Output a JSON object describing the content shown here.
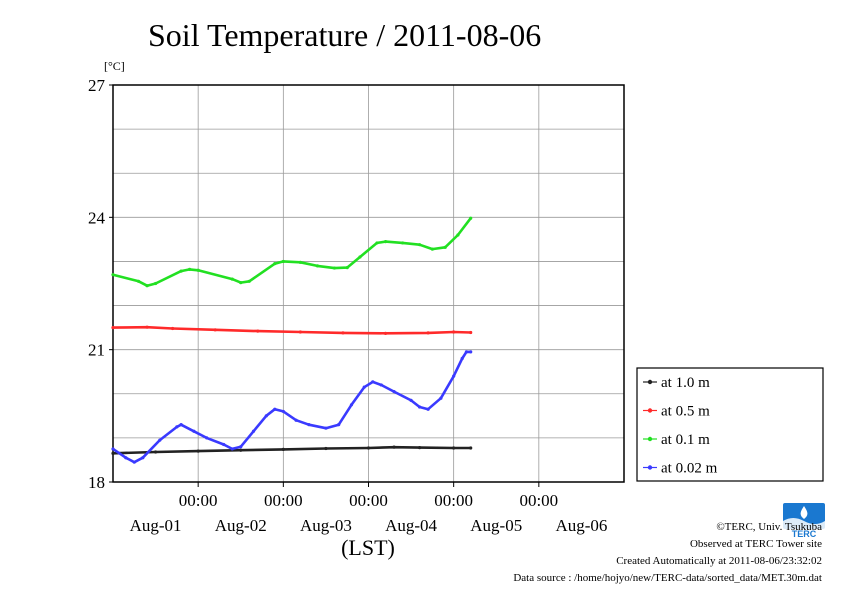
{
  "chart_data": {
    "type": "line",
    "title": "Soil Temperature / 2011-08-06",
    "yunit": "[°C]",
    "xlabel": "(LST)",
    "ylim": [
      18,
      27
    ],
    "xlim": [
      0,
      6
    ],
    "y_ticks": [
      "18",
      "21",
      "24",
      "27"
    ],
    "y_tick_values": [
      18,
      21,
      24,
      27
    ],
    "time_tick_label": "00:00",
    "x_tick_positions": [
      1,
      2,
      3,
      4,
      5
    ],
    "date_labels": [
      "Aug-01",
      "Aug-02",
      "Aug-03",
      "Aug-04",
      "Aug-05",
      "Aug-06"
    ],
    "grid": true,
    "legend_position": "right",
    "series": [
      {
        "name": "at 1.0 m",
        "color": "#222222",
        "points": [
          [
            0.0,
            18.65
          ],
          [
            0.5,
            18.68
          ],
          [
            1.0,
            18.7
          ],
          [
            1.5,
            18.72
          ],
          [
            2.0,
            18.74
          ],
          [
            2.5,
            18.76
          ],
          [
            3.0,
            18.77
          ],
          [
            3.3,
            18.79
          ],
          [
            3.6,
            18.78
          ],
          [
            4.0,
            18.77
          ],
          [
            4.2,
            18.77
          ]
        ]
      },
      {
        "name": "at 0.5 m",
        "color": "#ff2a2a",
        "points": [
          [
            0.0,
            21.5
          ],
          [
            0.4,
            21.51
          ],
          [
            0.7,
            21.48
          ],
          [
            1.2,
            21.45
          ],
          [
            1.7,
            21.42
          ],
          [
            2.2,
            21.4
          ],
          [
            2.7,
            21.38
          ],
          [
            3.2,
            21.37
          ],
          [
            3.7,
            21.38
          ],
          [
            4.0,
            21.4
          ],
          [
            4.2,
            21.39
          ]
        ]
      },
      {
        "name": "at 0.1 m",
        "color": "#22e022",
        "points": [
          [
            0.0,
            22.7
          ],
          [
            0.3,
            22.55
          ],
          [
            0.4,
            22.45
          ],
          [
            0.5,
            22.5
          ],
          [
            0.8,
            22.78
          ],
          [
            0.9,
            22.82
          ],
          [
            1.0,
            22.8
          ],
          [
            1.4,
            22.6
          ],
          [
            1.5,
            22.52
          ],
          [
            1.6,
            22.55
          ],
          [
            1.9,
            22.95
          ],
          [
            2.0,
            23.0
          ],
          [
            2.2,
            22.98
          ],
          [
            2.4,
            22.9
          ],
          [
            2.6,
            22.85
          ],
          [
            2.75,
            22.86
          ],
          [
            2.9,
            23.1
          ],
          [
            3.1,
            23.42
          ],
          [
            3.2,
            23.45
          ],
          [
            3.4,
            23.42
          ],
          [
            3.6,
            23.38
          ],
          [
            3.75,
            23.28
          ],
          [
            3.9,
            23.32
          ],
          [
            4.05,
            23.6
          ],
          [
            4.2,
            23.98
          ]
        ]
      },
      {
        "name": "at 0.02 m",
        "color": "#3a3aff",
        "points": [
          [
            0.0,
            18.75
          ],
          [
            0.15,
            18.55
          ],
          [
            0.25,
            18.45
          ],
          [
            0.35,
            18.55
          ],
          [
            0.55,
            18.95
          ],
          [
            0.75,
            19.25
          ],
          [
            0.8,
            19.3
          ],
          [
            0.95,
            19.15
          ],
          [
            1.1,
            19.0
          ],
          [
            1.3,
            18.85
          ],
          [
            1.4,
            18.75
          ],
          [
            1.5,
            18.8
          ],
          [
            1.65,
            19.15
          ],
          [
            1.8,
            19.5
          ],
          [
            1.9,
            19.65
          ],
          [
            2.0,
            19.6
          ],
          [
            2.15,
            19.4
          ],
          [
            2.3,
            19.3
          ],
          [
            2.5,
            19.22
          ],
          [
            2.65,
            19.3
          ],
          [
            2.8,
            19.75
          ],
          [
            2.95,
            20.15
          ],
          [
            3.05,
            20.27
          ],
          [
            3.15,
            20.2
          ],
          [
            3.3,
            20.05
          ],
          [
            3.5,
            19.85
          ],
          [
            3.6,
            19.7
          ],
          [
            3.7,
            19.65
          ],
          [
            3.85,
            19.9
          ],
          [
            4.0,
            20.4
          ],
          [
            4.1,
            20.8
          ],
          [
            4.15,
            20.95
          ],
          [
            4.2,
            20.95
          ]
        ]
      }
    ]
  },
  "footer": {
    "copyright": "©TERC, Univ. Tsukuba",
    "observed": "Observed at TERC Tower site",
    "created": "Created Automatically at 2011-08-06/23:32:02",
    "source": "Data source : /home/hojyo/new/TERC-data/sorted_data/MET.30m.dat"
  },
  "logo": {
    "text": "TERC",
    "color": "#1a78d0"
  }
}
